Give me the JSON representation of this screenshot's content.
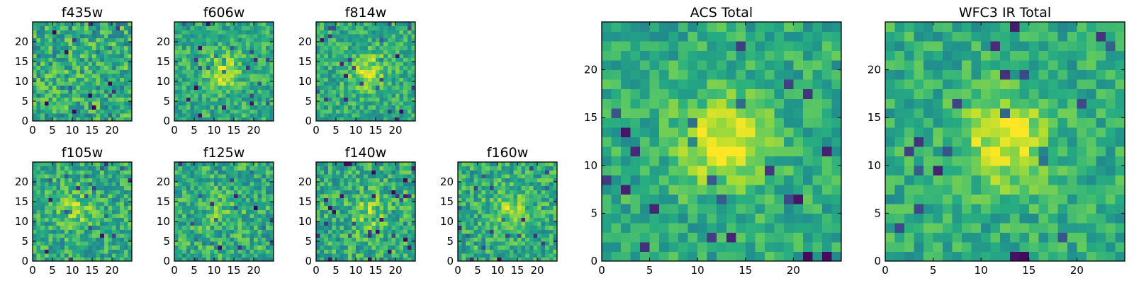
{
  "chart_data": [
    {
      "type": "heatmap",
      "title": "f435w",
      "xlim": [
        0,
        25
      ],
      "ylim": [
        0,
        25
      ],
      "xticks": [
        "0",
        "5",
        "10",
        "15",
        "20"
      ],
      "yticks": [
        "0",
        "5",
        "10",
        "15",
        "20"
      ],
      "blob": {
        "cx": 12,
        "cy": 12,
        "strength": 0.02
      },
      "noise": 0.45,
      "seed": 11,
      "colormap": "viridis",
      "grid": false
    },
    {
      "type": "heatmap",
      "title": "f606w",
      "xlim": [
        0,
        25
      ],
      "ylim": [
        0,
        25
      ],
      "xticks": [
        "0",
        "5",
        "10",
        "15",
        "20"
      ],
      "yticks": [
        "0",
        "5",
        "10",
        "15",
        "20"
      ],
      "blob": {
        "cx": 12,
        "cy": 12.5,
        "strength": 0.28
      },
      "noise": 0.34,
      "seed": 23,
      "colormap": "viridis",
      "grid": false
    },
    {
      "type": "heatmap",
      "title": "f814w",
      "xlim": [
        0,
        25
      ],
      "ylim": [
        0,
        25
      ],
      "xticks": [
        "0",
        "5",
        "10",
        "15",
        "20"
      ],
      "yticks": [
        "0",
        "5",
        "10",
        "15",
        "20"
      ],
      "blob": {
        "cx": 13,
        "cy": 12.5,
        "strength": 0.28
      },
      "noise": 0.34,
      "seed": 37,
      "colormap": "viridis",
      "grid": false
    },
    {
      "type": "heatmap",
      "title": "f105w",
      "xlim": [
        0,
        25
      ],
      "ylim": [
        0,
        25
      ],
      "xticks": [
        "0",
        "5",
        "10",
        "15",
        "20"
      ],
      "yticks": [
        "0",
        "5",
        "10",
        "15",
        "20"
      ],
      "blob": {
        "cx": 11,
        "cy": 13,
        "strength": 0.18
      },
      "noise": 0.38,
      "seed": 41,
      "colormap": "viridis",
      "grid": false
    },
    {
      "type": "heatmap",
      "title": "f125w",
      "xlim": [
        0,
        25
      ],
      "ylim": [
        0,
        25
      ],
      "xticks": [
        "0",
        "5",
        "10",
        "15",
        "20"
      ],
      "yticks": [
        "0",
        "5",
        "10",
        "15",
        "20"
      ],
      "blob": {
        "cx": 12,
        "cy": 12,
        "strength": 0.1
      },
      "noise": 0.4,
      "seed": 53,
      "colormap": "viridis",
      "grid": false
    },
    {
      "type": "heatmap",
      "title": "f140w",
      "xlim": [
        0,
        25
      ],
      "ylim": [
        0,
        25
      ],
      "xticks": [
        "0",
        "5",
        "10",
        "15",
        "20"
      ],
      "yticks": [
        "0",
        "5",
        "10",
        "15",
        "20"
      ],
      "blob": {
        "cx": 13,
        "cy": 12,
        "strength": 0.18
      },
      "noise": 0.4,
      "seed": 67,
      "colormap": "viridis",
      "grid": false
    },
    {
      "type": "heatmap",
      "title": "f160w",
      "xlim": [
        0,
        25
      ],
      "ylim": [
        0,
        25
      ],
      "xticks": [
        "0",
        "5",
        "10",
        "15",
        "20"
      ],
      "yticks": [
        "0",
        "5",
        "10",
        "15",
        "20"
      ],
      "blob": {
        "cx": 13,
        "cy": 13,
        "strength": 0.22
      },
      "noise": 0.38,
      "seed": 79,
      "colormap": "viridis",
      "grid": false
    },
    {
      "type": "heatmap",
      "title": "ACS Total",
      "xlim": [
        0,
        25
      ],
      "ylim": [
        0,
        25
      ],
      "xticks": [
        "0",
        "5",
        "10",
        "15",
        "20"
      ],
      "yticks": [
        "0",
        "5",
        "10",
        "15",
        "20"
      ],
      "blob": {
        "cx": 12.5,
        "cy": 12.5,
        "strength": 0.38
      },
      "noise": 0.3,
      "seed": 83,
      "colormap": "viridis",
      "grid": false
    },
    {
      "type": "heatmap",
      "title": "WFC3 IR Total",
      "xlim": [
        0,
        25
      ],
      "ylim": [
        0,
        25
      ],
      "xticks": [
        "0",
        "5",
        "10",
        "15",
        "20"
      ],
      "yticks": [
        "0",
        "5",
        "10",
        "15",
        "20"
      ],
      "blob": {
        "cx": 12.5,
        "cy": 12.5,
        "strength": 0.36
      },
      "noise": 0.3,
      "seed": 97,
      "colormap": "viridis",
      "grid": false
    }
  ]
}
